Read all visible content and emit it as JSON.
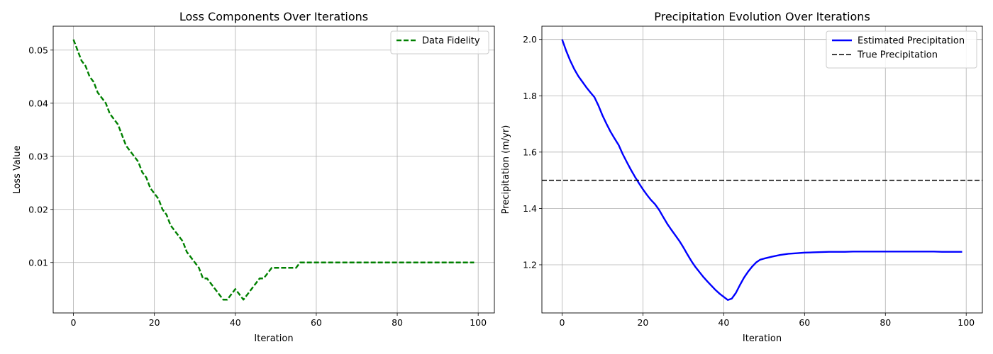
{
  "chart_data": [
    {
      "type": "line",
      "title": "Loss Components Over Iterations",
      "xlabel": "Iteration",
      "ylabel": "Loss Value",
      "xlim": [
        -5,
        104
      ],
      "ylim": [
        0.0005,
        0.0545
      ],
      "xticks": [
        0,
        20,
        40,
        60,
        80,
        100
      ],
      "yticks": [
        0.01,
        0.02,
        0.03,
        0.04,
        0.05
      ],
      "ytick_labels": [
        "0.01",
        "0.02",
        "0.03",
        "0.04",
        "0.05"
      ],
      "grid": true,
      "legend_position": "top-right",
      "series": [
        {
          "name": "Data Fidelity",
          "color": "#008000",
          "style": "dashed",
          "x": [
            0,
            1,
            2,
            3,
            4,
            5,
            6,
            7,
            8,
            9,
            10,
            11,
            12,
            13,
            14,
            15,
            16,
            17,
            18,
            19,
            20,
            21,
            22,
            23,
            24,
            25,
            26,
            27,
            28,
            29,
            30,
            31,
            32,
            33,
            34,
            35,
            36,
            37,
            38,
            39,
            40,
            41,
            42,
            43,
            44,
            45,
            46,
            47,
            48,
            49,
            50,
            51,
            52,
            53,
            54,
            55,
            56,
            57,
            58,
            59,
            60,
            61,
            62,
            63,
            64,
            65,
            66,
            67,
            68,
            69,
            70,
            71,
            72,
            73,
            74,
            75,
            76,
            77,
            78,
            79,
            80,
            81,
            82,
            83,
            84,
            85,
            86,
            87,
            88,
            89,
            90,
            91,
            92,
            93,
            94,
            95,
            96,
            97,
            98,
            99
          ],
          "y": [
            0.052,
            0.05,
            0.048,
            0.047,
            0.045,
            0.044,
            0.042,
            0.041,
            0.04,
            0.038,
            0.037,
            0.036,
            0.034,
            0.032,
            0.031,
            0.03,
            0.029,
            0.027,
            0.026,
            0.024,
            0.023,
            0.022,
            0.02,
            0.019,
            0.017,
            0.016,
            0.015,
            0.014,
            0.012,
            0.011,
            0.01,
            0.009,
            0.007,
            0.007,
            0.006,
            0.005,
            0.004,
            0.003,
            0.003,
            0.004,
            0.005,
            0.004,
            0.003,
            0.004,
            0.005,
            0.006,
            0.007,
            0.007,
            0.008,
            0.009,
            0.009,
            0.009,
            0.009,
            0.009,
            0.009,
            0.009,
            0.01,
            0.01,
            0.01,
            0.01,
            0.01,
            0.01,
            0.01,
            0.01,
            0.01,
            0.01,
            0.01,
            0.01,
            0.01,
            0.01,
            0.01,
            0.01,
            0.01,
            0.01,
            0.01,
            0.01,
            0.01,
            0.01,
            0.01,
            0.01,
            0.01,
            0.01,
            0.01,
            0.01,
            0.01,
            0.01,
            0.01,
            0.01,
            0.01,
            0.01,
            0.01,
            0.01,
            0.01,
            0.01,
            0.01,
            0.01,
            0.01,
            0.01,
            0.01,
            0.01
          ]
        }
      ]
    },
    {
      "type": "line",
      "title": "Precipitation Evolution Over Iterations",
      "xlabel": "Iteration",
      "ylabel": "Precipitation (m/yr)",
      "xlim": [
        -5,
        104
      ],
      "ylim": [
        1.029,
        2.047
      ],
      "xticks": [
        0,
        20,
        40,
        60,
        80,
        100
      ],
      "yticks": [
        1.2,
        1.4,
        1.6,
        1.8,
        2.0
      ],
      "ytick_labels": [
        "1.2",
        "1.4",
        "1.6",
        "1.8",
        "2.0"
      ],
      "grid": true,
      "legend_position": "top-right",
      "series": [
        {
          "name": "Estimated Precipitation",
          "color": "#0000ff",
          "style": "solid",
          "x": [
            0,
            1,
            2,
            3,
            4,
            5,
            6,
            7,
            8,
            9,
            10,
            11,
            12,
            13,
            14,
            15,
            16,
            17,
            18,
            19,
            20,
            21,
            22,
            23,
            24,
            25,
            26,
            27,
            28,
            29,
            30,
            31,
            32,
            33,
            34,
            35,
            36,
            37,
            38,
            39,
            40,
            41,
            42,
            43,
            44,
            45,
            46,
            47,
            48,
            49,
            50,
            52,
            54,
            56,
            58,
            60,
            62,
            64,
            66,
            68,
            70,
            72,
            74,
            76,
            78,
            80,
            82,
            84,
            86,
            88,
            90,
            92,
            94,
            96,
            98,
            99
          ],
          "y": [
            2.0,
            1.96,
            1.925,
            1.895,
            1.87,
            1.85,
            1.83,
            1.812,
            1.795,
            1.765,
            1.73,
            1.7,
            1.672,
            1.648,
            1.625,
            1.593,
            1.565,
            1.538,
            1.513,
            1.49,
            1.468,
            1.448,
            1.43,
            1.415,
            1.395,
            1.37,
            1.346,
            1.325,
            1.305,
            1.285,
            1.262,
            1.237,
            1.213,
            1.192,
            1.174,
            1.156,
            1.14,
            1.125,
            1.11,
            1.097,
            1.086,
            1.075,
            1.08,
            1.1,
            1.128,
            1.154,
            1.175,
            1.193,
            1.208,
            1.218,
            1.222,
            1.229,
            1.235,
            1.239,
            1.241,
            1.243,
            1.244,
            1.245,
            1.246,
            1.246,
            1.246,
            1.247,
            1.247,
            1.247,
            1.247,
            1.247,
            1.247,
            1.247,
            1.247,
            1.247,
            1.247,
            1.247,
            1.246,
            1.246,
            1.246,
            1.246
          ]
        },
        {
          "name": "True Precipitation",
          "color": "#000000",
          "style": "dashed",
          "hline": 1.5
        }
      ]
    }
  ]
}
